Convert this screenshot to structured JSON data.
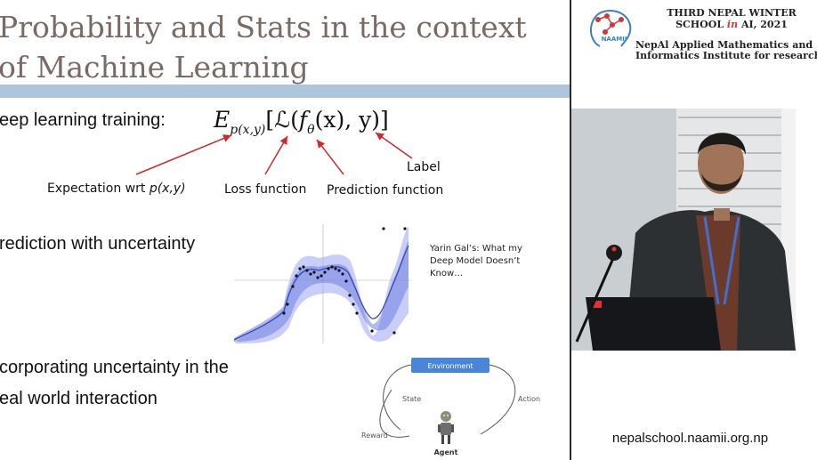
{
  "slide": {
    "title_line1": "Probability and Stats in the context",
    "title_line2": "of Machine Learning",
    "bullets": [
      "eep learning training:",
      "rediction with uncertainty",
      "corporating uncertainty in the",
      "eal world interaction"
    ],
    "equation": {
      "expectation": "E",
      "expectation_sub": "p(x,y)",
      "loss_open": "[ℒ(",
      "func": "f",
      "func_sub": "θ",
      "args": "(x), y)]"
    },
    "annotations": {
      "expectation": "Expectation wrt ",
      "expectation_var": "p(x,y)",
      "loss": "Loss function",
      "prediction": "Prediction function",
      "label": "Label"
    },
    "citation_line1": "Yarin Gal’s: What my",
    "citation_line2": "Deep Model Doesn’t",
    "citation_line3": "Know…",
    "rl_diagram": {
      "environment": "Environment",
      "state": "State",
      "action": "Action",
      "reward": "Reward",
      "agent": "Agent"
    },
    "colors": {
      "title_text": "#7a6a66",
      "title_bar": "#aec6dc",
      "arrow": "#cc2b2b",
      "uncertainty_band": "#9aa6f2",
      "env_box": "#4a86d6"
    }
  },
  "sidebar": {
    "school_line1": "THIRD NEPAL WINTER",
    "school_line2_a": "SCHOOL ",
    "school_line2_in": "in",
    "school_line2_b": " AI, 2021",
    "institute_line1": "NepAl Applied Mathematics and",
    "institute_line2": "Informatics Institute for research",
    "logo_text": "NAAMII",
    "url": "nepalschool.naamii.org.np"
  }
}
